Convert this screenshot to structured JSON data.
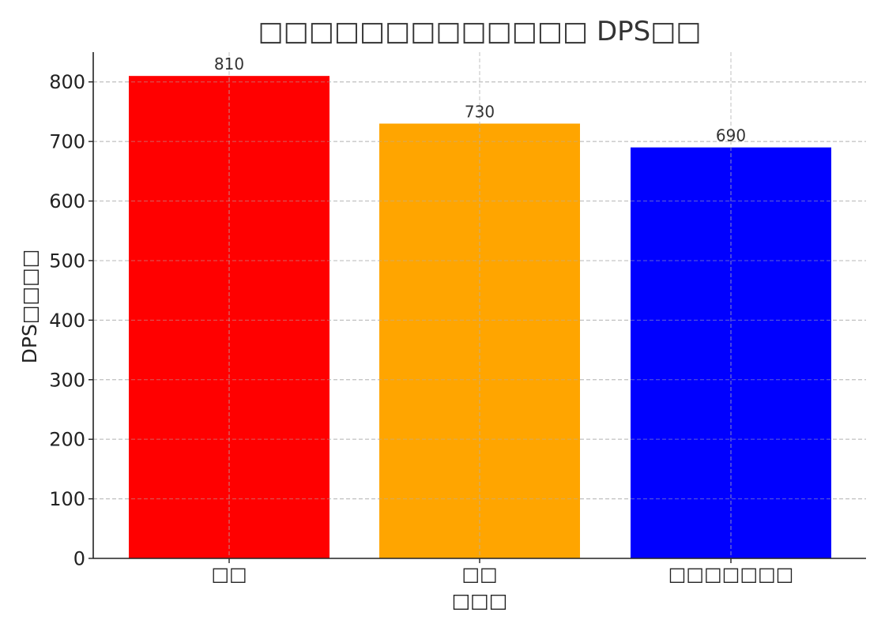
{
  "chart_data": {
    "type": "bar",
    "title": "□□□□□□□□□□□□□ DPS□□",
    "xlabel": "□□□",
    "ylabel": "DPS□□□□",
    "categories": [
      "□□",
      "□□",
      "□□□□□□□"
    ],
    "values": [
      810,
      730,
      690
    ],
    "data_labels": [
      "810",
      "730",
      "690"
    ],
    "colors": [
      "#ff0000",
      "#ffa500",
      "#0000ff"
    ],
    "ylim": [
      0,
      850
    ],
    "yticks": [
      0,
      100,
      200,
      300,
      400,
      500,
      600,
      700,
      800
    ],
    "ytick_labels": [
      "0",
      "100",
      "200",
      "300",
      "400",
      "500",
      "600",
      "700",
      "800"
    ],
    "grid": true
  }
}
